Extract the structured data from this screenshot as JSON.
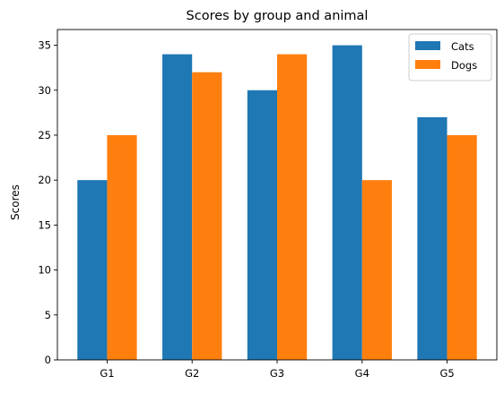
{
  "chart_data": {
    "type": "bar",
    "title": "Scores by group and animal",
    "xlabel": "",
    "ylabel": "Scores",
    "categories": [
      "G1",
      "G2",
      "G3",
      "G4",
      "G5"
    ],
    "series": [
      {
        "name": "Cats",
        "values": [
          20,
          34,
          30,
          35,
          27
        ],
        "color": "#1f77b4"
      },
      {
        "name": "Dogs",
        "values": [
          25,
          32,
          34,
          20,
          25
        ],
        "color": "#ff7f0e"
      }
    ],
    "ylim": [
      0,
      36.75
    ],
    "yticks": [
      0,
      5,
      10,
      15,
      20,
      25,
      30,
      35
    ],
    "grid": false,
    "legend_position": "top-right"
  }
}
